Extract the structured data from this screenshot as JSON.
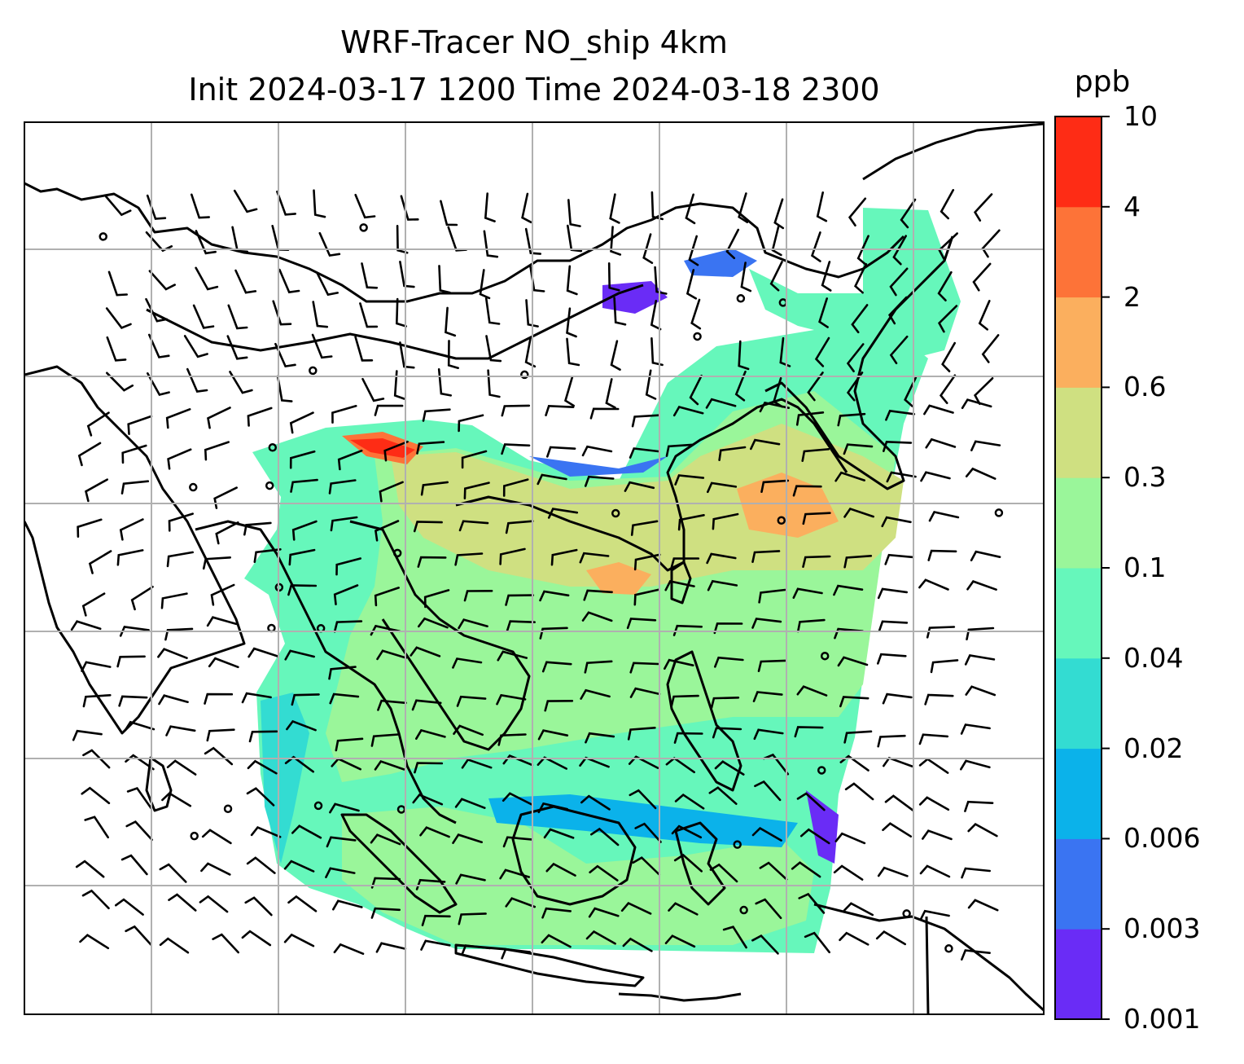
{
  "title": {
    "line1": "WRF-Tracer NO_ship 4km",
    "line2": "Init 2024-03-17 1200 Time 2024-03-18 2300"
  },
  "colorbar": {
    "unit": "ppb",
    "levels": [
      "0.001",
      "0.003",
      "0.006",
      "0.02",
      "0.04",
      "0.1",
      "0.3",
      "0.6",
      "2",
      "4",
      "10"
    ],
    "colors": [
      "#6a2cf6",
      "#3a74f2",
      "#0bb2ea",
      "#33dcd2",
      "#66f7bb",
      "#9af69a",
      "#cfe081",
      "#fbaf5e",
      "#fd7338",
      "#fe2c15"
    ]
  },
  "map": {
    "gridlines": true,
    "wind_barbs": true,
    "coastlines": true
  }
}
